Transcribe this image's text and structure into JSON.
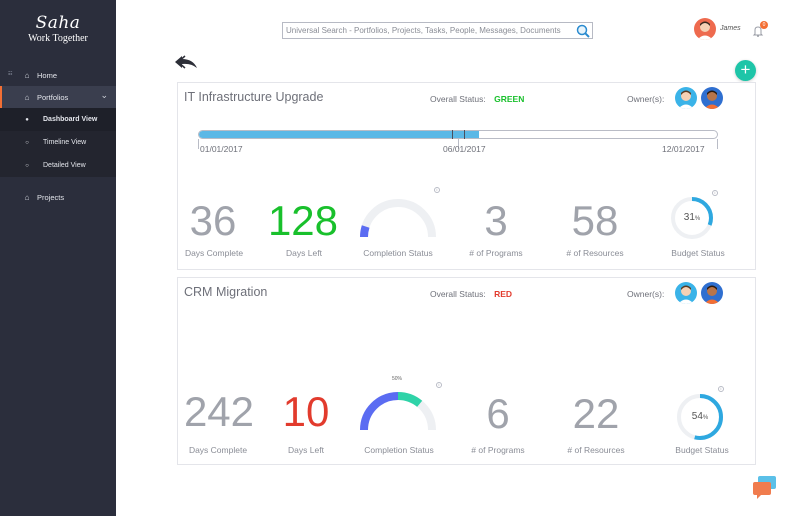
{
  "sidebar": {
    "brand": {
      "logo": "Saha",
      "tagline": "Work Together"
    },
    "home_prefix": "☷",
    "items": [
      {
        "label": "Home",
        "icon": "home-icon"
      },
      {
        "label": "Portfolios",
        "icon": "home-icon"
      },
      {
        "label": "Projects",
        "icon": "home-icon"
      }
    ],
    "subitems": [
      {
        "label": "Dashboard View",
        "active": true
      },
      {
        "label": "Timeline View",
        "active": false
      },
      {
        "label": "Detailed View",
        "active": false
      }
    ]
  },
  "header": {
    "search_placeholder": "Universal Search - Portfolios, Projects, Tasks, People, Messages, Documents",
    "user_name": "James",
    "notification_count": "0"
  },
  "colors": {
    "sidebar_bg": "#2b2e3c",
    "accent_orange": "#f36f34",
    "accent_teal": "#1ec5a8",
    "status_green": "#19c02c",
    "status_red": "#e23b2d",
    "progress_blue": "#5bb8e6"
  },
  "projects": [
    {
      "title": "IT Infrastructure Upgrade",
      "status_label": "Overall Status:",
      "status_value": "GREEN",
      "owners_label": "Owner(s):",
      "timeline": {
        "start": "01/01/2017",
        "mid": "06/01/2017",
        "end": "12/01/2017",
        "progress": 0.54
      },
      "days_complete": "36",
      "days_complete_label": "Days Complete",
      "days_left": "128",
      "days_left_label": "Days Left",
      "completion_label": "Completion Status",
      "completion_fraction": 0.1,
      "programs": "3",
      "programs_label": "# of Programs",
      "resources": "58",
      "resources_label": "# of Resources",
      "budget_pct": "31",
      "budget_fraction": 0.31,
      "budget_label": "Budget Status"
    },
    {
      "title": "CRM Migration",
      "status_label": "Overall Status:",
      "status_value": "RED",
      "owners_label": "Owner(s):",
      "days_complete": "242",
      "days_complete_label": "Days Complete",
      "days_left": "10",
      "days_left_label": "Days Left",
      "completion_label": "Completion Status",
      "completion_tick": "50%",
      "completion_fraction": 0.72,
      "programs": "6",
      "programs_label": "# of Programs",
      "resources": "22",
      "resources_label": "# of Resources",
      "budget_pct": "54",
      "budget_fraction": 0.54,
      "budget_label": "Budget Status"
    }
  ],
  "percent_sign": "%"
}
